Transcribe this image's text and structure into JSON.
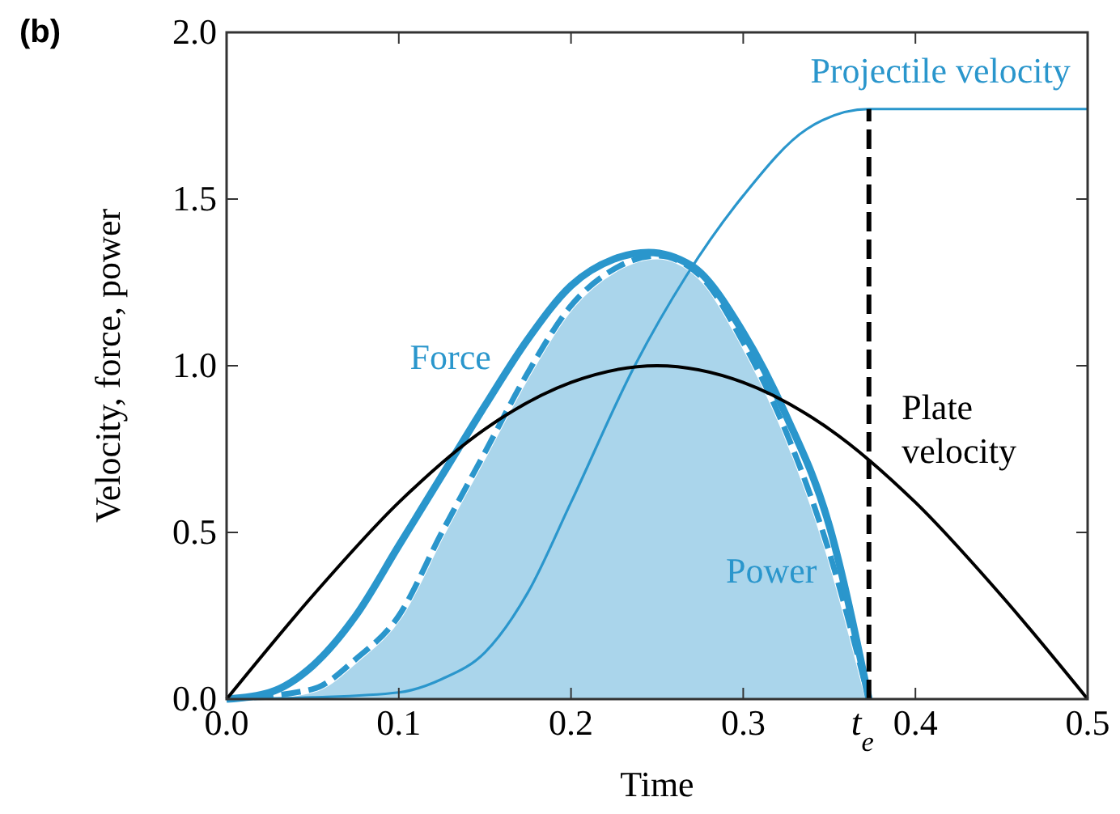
{
  "chart_data": {
    "type": "line",
    "xlabel": "Time",
    "ylabel": "Velocity, force, power",
    "annotations": [
      "(b)"
    ],
    "xlim": [
      0,
      0.5
    ],
    "ylim": [
      0,
      2.0
    ],
    "xticks": [
      {
        "value": 0,
        "label": "0.0"
      },
      0.1,
      0.2,
      0.3,
      0.4,
      0.5
    ],
    "yticks": [
      {
        "value": 0,
        "label": "0.0"
      },
      0.5,
      {
        "value": 1,
        "label": "1.0"
      },
      1.5,
      {
        "value": 2,
        "label": "2.0"
      }
    ],
    "grid": false,
    "ref_lines": [
      {
        "axis": "x",
        "value": 0.373,
        "label": "t$_{e}$",
        "color": "#000000",
        "line_style": "dashed"
      }
    ],
    "series": [
      {
        "name": "Power",
        "type": "area",
        "color": "#2a96cc",
        "line_style": "dashed",
        "x": [
          0,
          0.05,
          0.075,
          0.1,
          0.125,
          0.15,
          0.175,
          0.2,
          0.225,
          0.25,
          0.275,
          0.3,
          0.325,
          0.35,
          0.373
        ],
        "values": [
          0,
          0.03,
          0.12,
          0.25,
          0.5,
          0.74,
          0.98,
          1.18,
          1.29,
          1.33,
          1.27,
          1.07,
          0.8,
          0.44,
          0
        ]
      },
      {
        "name": "Force",
        "color": "#2a96cc",
        "x": [
          0,
          0.025,
          0.05,
          0.075,
          0.1,
          0.125,
          0.15,
          0.175,
          0.2,
          0.225,
          0.245,
          0.27,
          0.3,
          0.325,
          0.35,
          0.373
        ],
        "values": [
          0,
          0.02,
          0.1,
          0.25,
          0.46,
          0.67,
          0.88,
          1.08,
          1.24,
          1.32,
          1.34,
          1.3,
          1.1,
          0.85,
          0.52,
          0
        ]
      },
      {
        "name": "Projectile velocity",
        "color": "#2a96cc",
        "x": [
          0,
          0.05,
          0.1,
          0.125,
          0.15,
          0.175,
          0.2,
          0.237,
          0.267,
          0.3,
          0.337,
          0.373,
          0.5
        ],
        "values": [
          0,
          0.005,
          0.02,
          0.06,
          0.14,
          0.32,
          0.59,
          1.0,
          1.27,
          1.51,
          1.71,
          1.77,
          1.77
        ]
      },
      {
        "name": "Plate velocity",
        "color": "#000000",
        "x": [
          0,
          0.05,
          0.1,
          0.15,
          0.2,
          0.25,
          0.3,
          0.35,
          0.4,
          0.45,
          0.5
        ],
        "values": [
          0,
          0.31,
          0.59,
          0.81,
          0.95,
          1.0,
          0.95,
          0.81,
          0.59,
          0.31,
          0
        ]
      }
    ]
  }
}
